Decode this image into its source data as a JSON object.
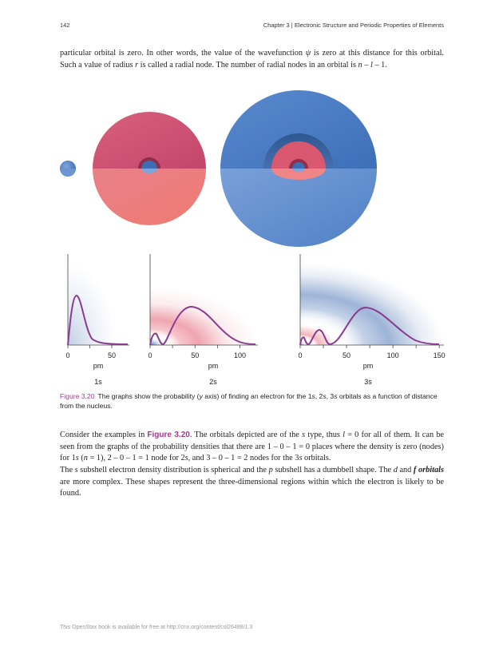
{
  "header": {
    "page_number": "142",
    "running_head": "Chapter 3 | Electronic Structure and Periodic Properties of Elements"
  },
  "paragraph1": {
    "s1": "particular orbital is zero. In other words, the value of the wavefunction ",
    "psi": "ψ",
    "s2": " is zero at this distance for this orbital. Such a value of radius ",
    "r": "r",
    "s3": " is called a radial node. The number of radial nodes in an orbital is ",
    "n": "n",
    "dash1": " – ",
    "l": "l",
    "s4": " – 1."
  },
  "figure": {
    "plots": [
      {
        "orbital_label": "1s",
        "x_unit": "pm",
        "ticks": [
          "0",
          "50"
        ],
        "tick_values": [
          0,
          50
        ],
        "x_max": 70
      },
      {
        "orbital_label": "2s",
        "x_unit": "pm",
        "ticks": [
          "0",
          "50",
          "100"
        ],
        "tick_values": [
          0,
          50,
          100
        ],
        "x_max": 120
      },
      {
        "orbital_label": "3s",
        "x_unit": "pm",
        "ticks": [
          "0",
          "50",
          "100",
          "150"
        ],
        "tick_values": [
          0,
          50,
          100,
          150
        ],
        "x_max": 155
      }
    ],
    "colors": {
      "node_pink": "#d9576f",
      "shell_blue": "#4a7cc4",
      "curve_purple": "#8a3c8e"
    },
    "caption_label": "Figure 3.20",
    "caption_text_parts": [
      "The graphs show the probability (",
      "y",
      " axis) of finding an electron for the 1",
      "s",
      ", 2",
      "s",
      ", 3",
      "s",
      " orbitals as a function of distance from the nucleus."
    ]
  },
  "paragraph2": {
    "s1": "Consider the examples in ",
    "figref": "Figure 3.20",
    "s2": ". The orbitals depicted are of the ",
    "s_it1": "s",
    "s3": " type, thus ",
    "l": "l",
    "s4": " = 0 for all of them. It can be seen from the graphs of the probability densities that there are 1 – 0 – 1 = 0 places where the density is zero (nodes) for 1",
    "s_it2": "s",
    "s5": " (",
    "n": "n",
    "s6": " = 1), 2 – 0 – 1 = 1 node for 2",
    "s_it3": "s",
    "s7": ", and 3 – 0 – 1 = 2 nodes for the 3",
    "s_it4": "s",
    "s8": " orbitals."
  },
  "paragraph3": {
    "s1": "The ",
    "s_it": "s",
    "s2": " subshell electron density distribution is spherical and the ",
    "p_it": "p",
    "s3": " subshell has a dumbbell shape. The ",
    "d_it": "d",
    "s4": " and ",
    "f_bold": "f orbitals",
    "s5": " are more complex. These shapes represent the three-dimensional regions within which the electron is likely to be found."
  },
  "footer": {
    "text": "This OpenStax book is available for free at http://cnx.org/content/col26488/1.3"
  }
}
